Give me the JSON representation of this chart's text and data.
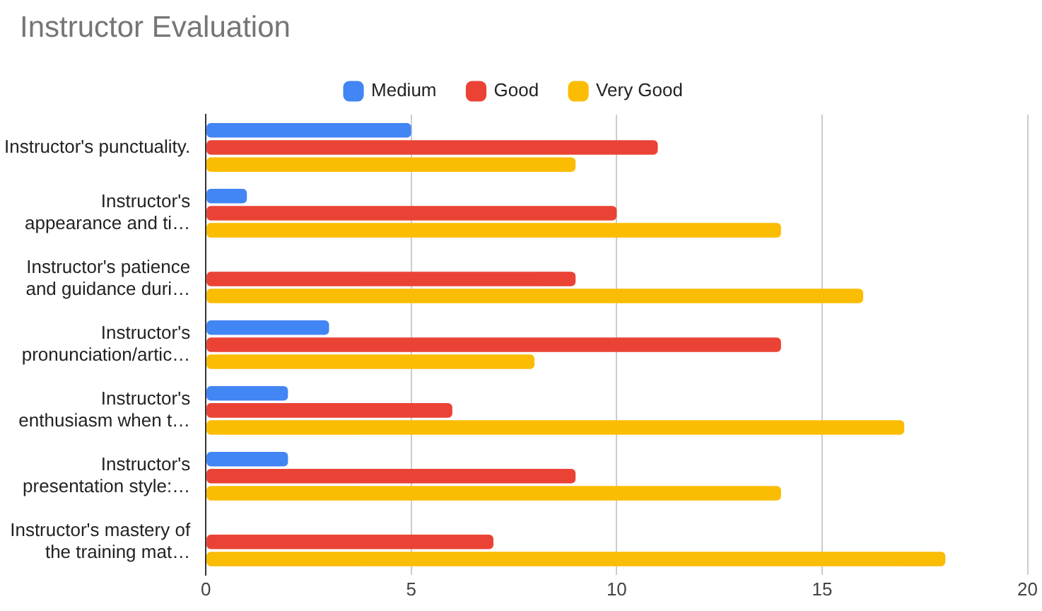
{
  "chart_data": {
    "type": "bar",
    "orientation": "horizontal",
    "title": "Instructor Evaluation",
    "categories": [
      "Instructor's punctuality.",
      "Instructor's appearance and ti…",
      "Instructor's patience and guidance duri…",
      "Instructor's pronunciation/artic…",
      "Instructor's enthusiasm when t…",
      "Instructor's presentation style:…",
      "Instructor's mastery of the training mat…"
    ],
    "series": [
      {
        "name": "Medium",
        "color": "#4285f4",
        "values": [
          5,
          1,
          null,
          3,
          2,
          2,
          null
        ]
      },
      {
        "name": "Good",
        "color": "#ea4335",
        "values": [
          11,
          10,
          9,
          14,
          6,
          9,
          7
        ]
      },
      {
        "name": "Very Good",
        "color": "#fbbc04",
        "values": [
          9,
          14,
          16,
          8,
          17,
          14,
          18
        ]
      }
    ],
    "xlim": [
      0,
      20
    ],
    "xticks": [
      0,
      5,
      10,
      15,
      20
    ],
    "grid": "x",
    "legend": "top"
  }
}
